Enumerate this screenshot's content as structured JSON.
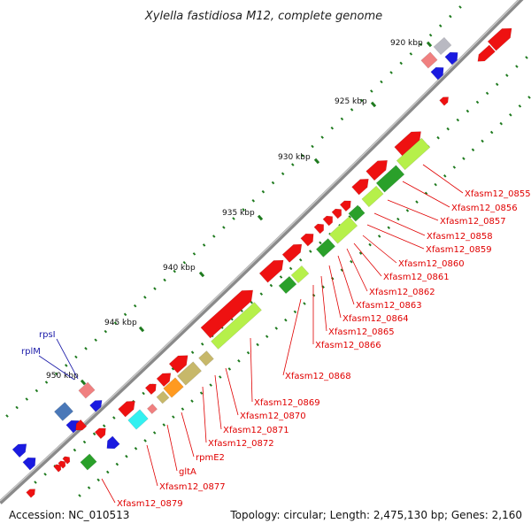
{
  "title": "Xylella fastidiosa M12, complete genome",
  "footer": {
    "accession": "Accession: NC_010513",
    "topology": "Topology: circular; Length: 2,475,130 bp; Genes: 2,160"
  },
  "colors": {
    "backbone": "#8a8a8a",
    "cds": "#ee1111",
    "gene": "#1a1ae0",
    "tick": "#1e7a1e",
    "label_red": "#e00000",
    "label_blue": "#1a1aa8",
    "green_dark": "#2aa02a",
    "green_light": "#b6f04a",
    "khaki": "#c7b86a",
    "orange": "#ff9a20",
    "cyan": "#33f0f0",
    "pink": "#f08080",
    "gray": "#b9b9c2",
    "steel": "#4a78b8"
  },
  "ticks": [
    {
      "label": "920 kbp"
    },
    {
      "label": "925 kbp"
    },
    {
      "label": "930 kbp"
    },
    {
      "label": "935 kbp"
    },
    {
      "label": "940 kbp"
    },
    {
      "label": "945 kbp"
    },
    {
      "label": "950 kbp"
    }
  ],
  "gene_labels_right": [
    "Xfasm12_0855",
    "Xfasm12_0856",
    "Xfasm12_0857",
    "Xfasm12_0858",
    "Xfasm12_0859",
    "Xfasm12_0860",
    "Xfasm12_0861",
    "Xfasm12_0862",
    "Xfasm12_0863",
    "Xfasm12_0864",
    "Xfasm12_0865",
    "Xfasm12_0866",
    "Xfasm12_0868",
    "Xfasm12_0869",
    "Xfasm12_0870",
    "Xfasm12_0871",
    "Xfasm12_0872",
    "rpmE2",
    "gltA",
    "Xfasm12_0877",
    "Xfasm12_0879"
  ],
  "gene_labels_left": [
    "rpsI",
    "rplM"
  ]
}
